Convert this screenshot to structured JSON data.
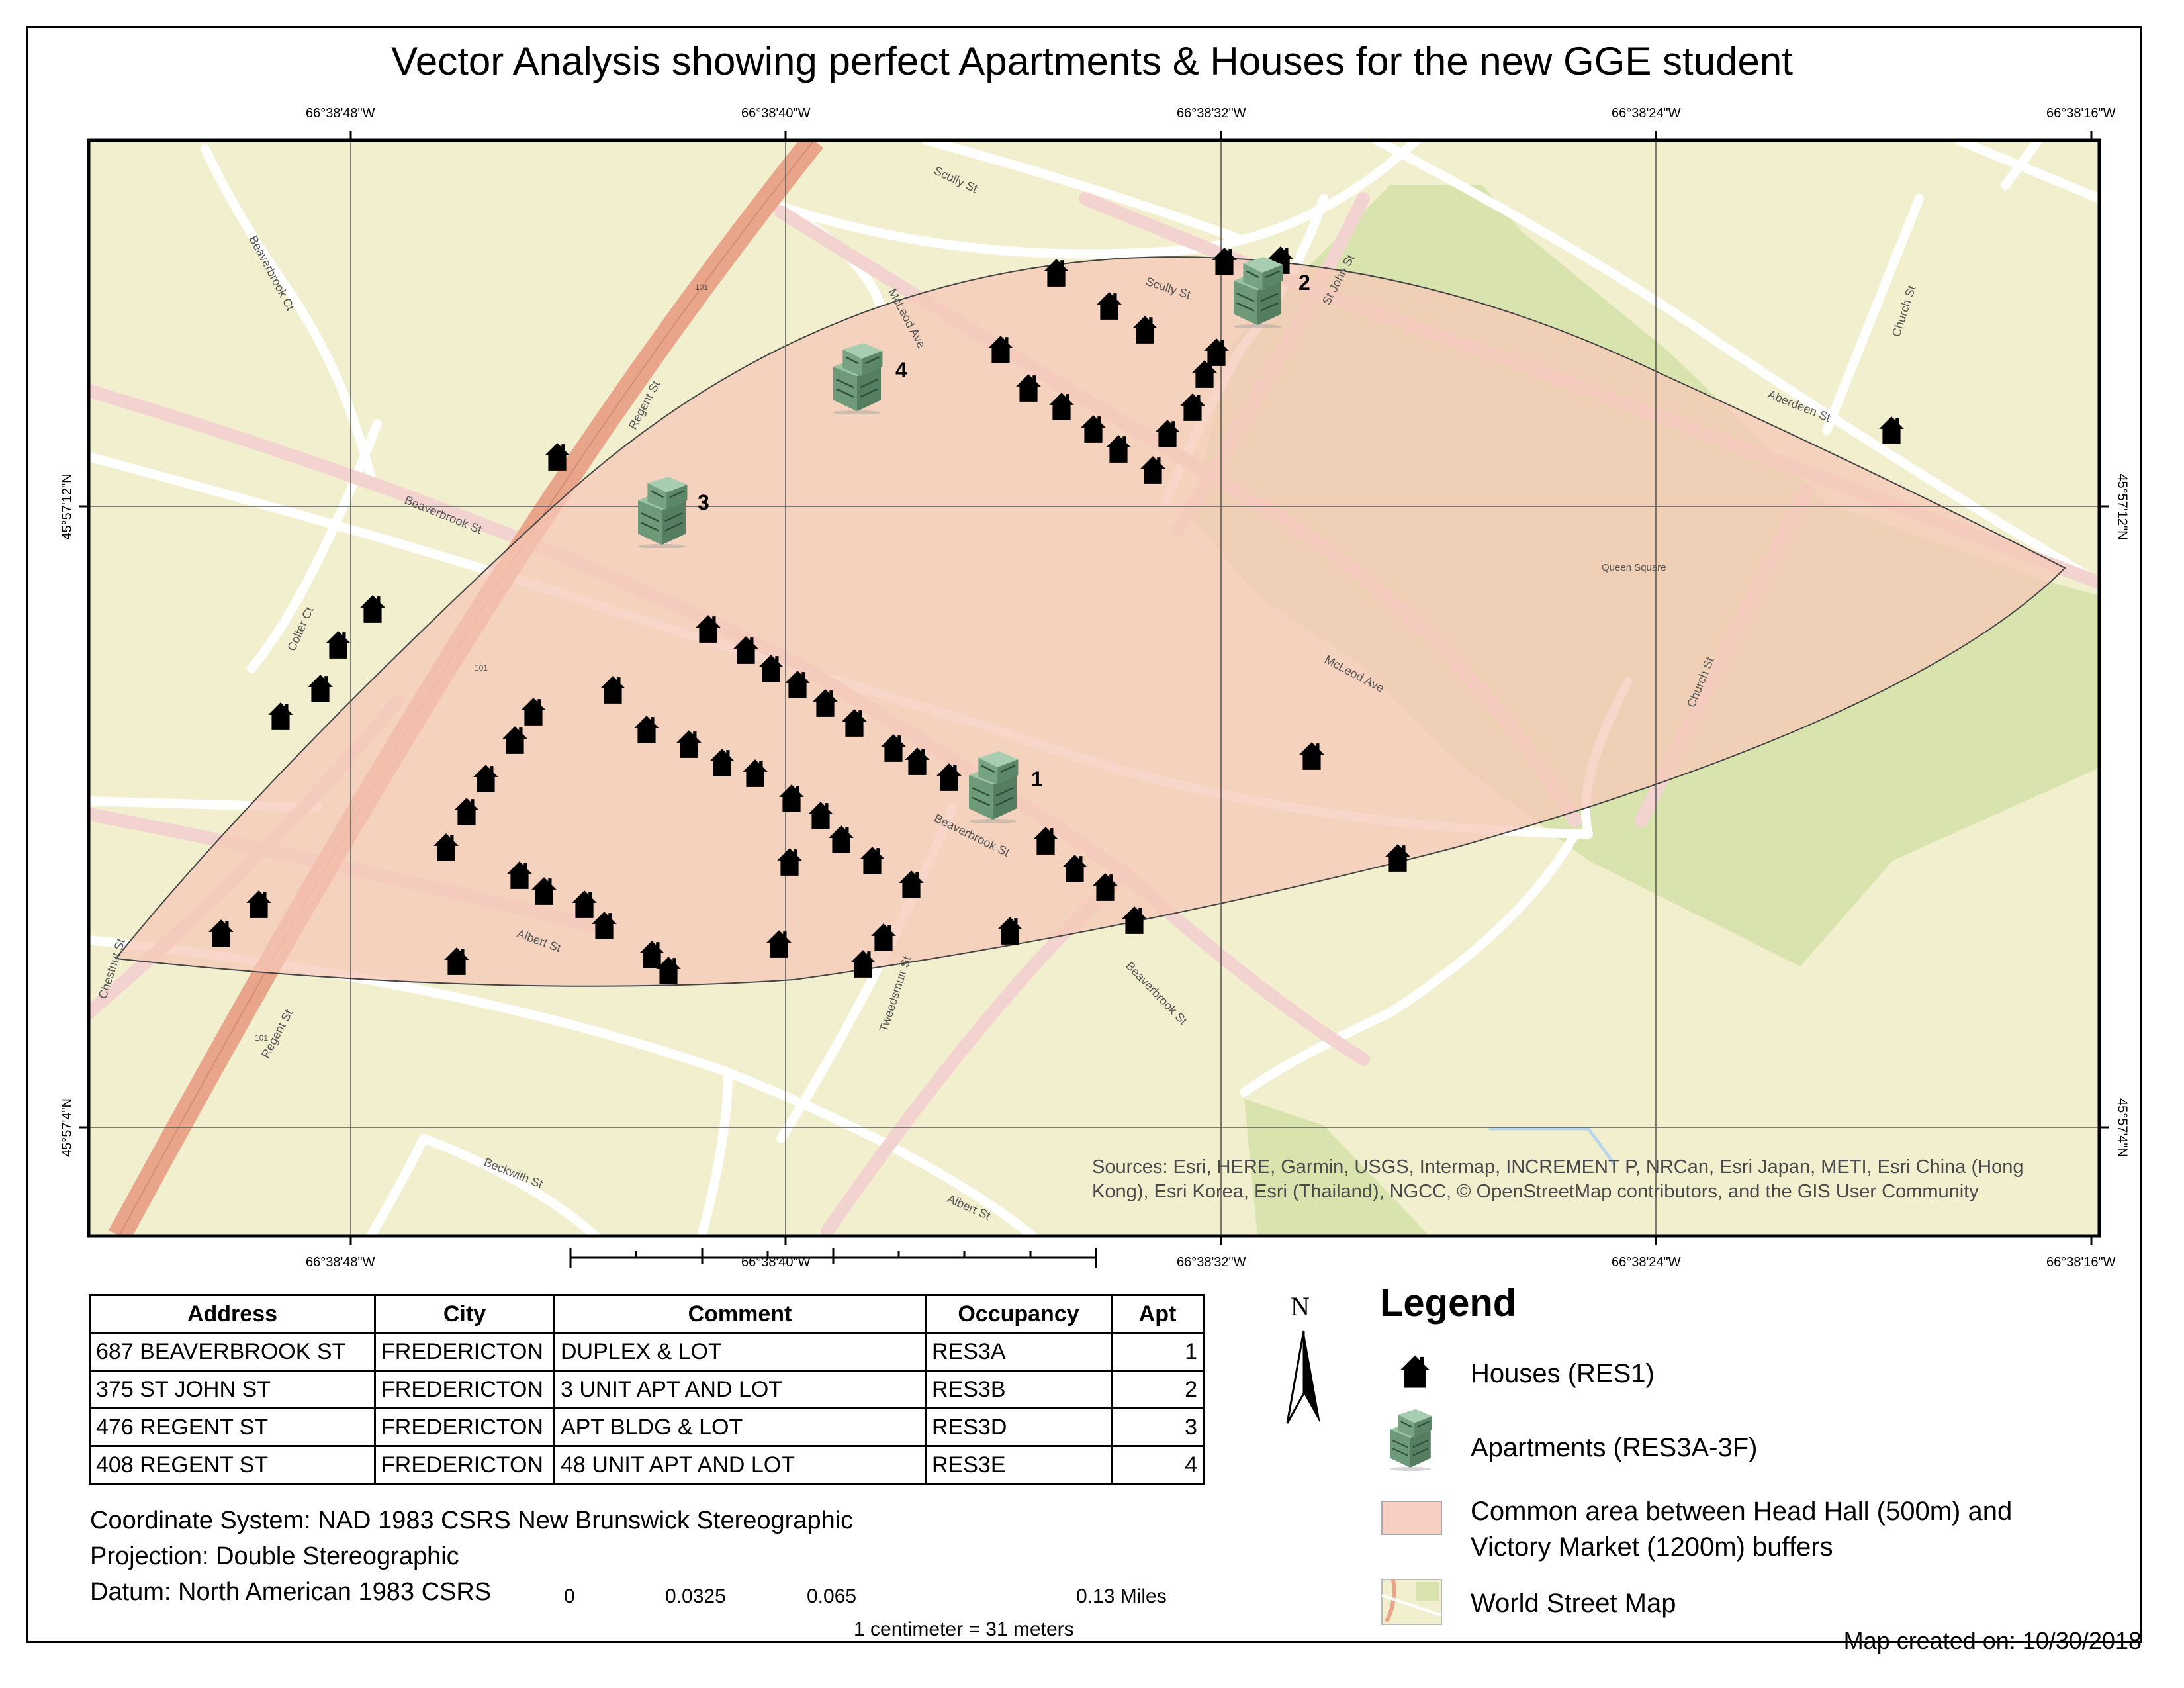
{
  "title": "Vector Analysis showing perfect Apartments & Houses for the new GGE student",
  "graticule": {
    "longitudes": [
      "66°38'48\"W",
      "66°38'40\"W",
      "66°38'32\"W",
      "66°38'24\"W",
      "66°38'16\"W"
    ],
    "latitudes": [
      "45°57'12\"N",
      "45°57'4\"N"
    ]
  },
  "street_labels": [
    "Scully St",
    "Scully St",
    "St John St",
    "McLeod Ave",
    "McLeod Ave",
    "Aberdeen St",
    "Church St",
    "Church St",
    "Beaverbrook Ct",
    "Beaverbrook St",
    "Beaverbrook St",
    "Beaverbrook St",
    "Regent St",
    "Regent St",
    "Colter Ct",
    "Albert St",
    "Albert St",
    "Tweedsmuir St",
    "Chestnut St",
    "Beckwith St",
    "Queen Square",
    "101",
    "101",
    "101"
  ],
  "apartment_labels": [
    "1",
    "2",
    "3",
    "4"
  ],
  "sources": "Sources: Esri, HERE, Garmin, USGS, Intermap, INCREMENT P, NRCan, Esri Japan, METI, Esri China (Hong Kong), Esri Korea, Esri (Thailand), NGCC, © OpenStreetMap contributors, and the GIS User Community",
  "table": {
    "headers": [
      "Address",
      "City",
      "Comment",
      "Occupancy",
      "Apt"
    ],
    "rows": [
      [
        "687 BEAVERBROOK ST",
        "FREDERICTON",
        "DUPLEX & LOT",
        "RES3A",
        "1"
      ],
      [
        "375 ST JOHN ST",
        "FREDERICTON",
        "3 UNIT APT AND LOT",
        "RES3B",
        "2"
      ],
      [
        "476 REGENT ST",
        "FREDERICTON",
        "APT BLDG & LOT",
        "RES3D",
        "3"
      ],
      [
        "408 REGENT ST",
        "FREDERICTON",
        "48 UNIT APT AND LOT",
        "RES3E",
        "4"
      ]
    ]
  },
  "info": {
    "coordinate_system": "Coordinate System: NAD 1983 CSRS New Brunswick Stereographic",
    "projection": "Projection: Double Stereographic",
    "datum": "Datum: North American 1983 CSRS"
  },
  "scale": {
    "labels": [
      "0",
      "0.0325",
      "0.065",
      "0.13 Miles"
    ],
    "ratio": "1 centimeter = 31 meters"
  },
  "north_arrow": "N",
  "legend": {
    "title": "Legend",
    "items": [
      {
        "label": "Houses (RES1)",
        "icon": "house-icon"
      },
      {
        "label": "Apartments (RES3A-3F)",
        "icon": "apartment-icon"
      },
      {
        "label": "Common area between Head Hall (500m) and Victory Market (1200m) buffers",
        "icon": "area-swatch"
      },
      {
        "label": "World Street Map",
        "icon": "basemap-swatch"
      }
    ]
  },
  "created": "Map created on: 10/30/2018",
  "colors": {
    "land": "#f2efcf",
    "park": "#d9e3ad",
    "road": "#ffffff",
    "highway": "#e8a58a",
    "common_area": "#f6c8b8",
    "house": "#000000",
    "apartment": "#6f9a7a"
  }
}
